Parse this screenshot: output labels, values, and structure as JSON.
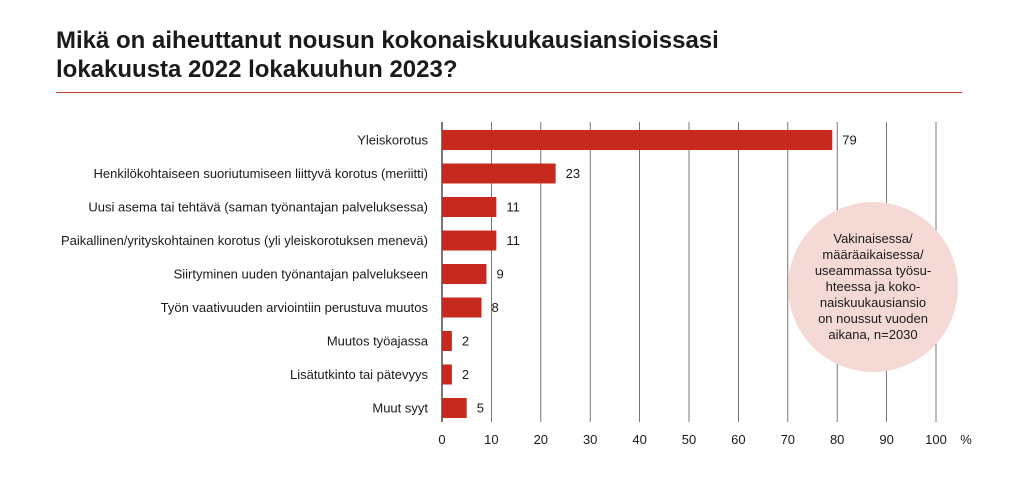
{
  "title_line1": "Mikä on aiheuttanut nousun kokonaiskuukausiansioissasi",
  "title_line2": "lokakuusta 2022 lokakuuhun 2023?",
  "annotation": "Vakinaisessa/\nmääräaikaisessa/\nuseammassa työsu-\nhteessa ja koko-\nnaiskuukausiansio\non noussut vuoden\naikana, n=2030",
  "colors": {
    "bar": "#c62a1f",
    "grid": "#555555",
    "rule": "#c0392b",
    "bubble": "#f4d9d4"
  },
  "chart_data": {
    "type": "bar",
    "orientation": "horizontal",
    "categories": [
      "Yleiskorotus",
      "Henkilökohtaiseen suoriutumiseen liittyvä korotus (meriitti)",
      "Uusi asema tai tehtävä (saman työnantajan palveluksessa)",
      "Paikallinen/yrityskohtainen korotus (yli yleiskorotuksen menevä)",
      "Siirtyminen uuden työnantajan palvelukseen",
      "Työn vaativuuden arviointiin perustuva muutos",
      "Muutos työajassa",
      "Lisätutkinto tai pätevyys",
      "Muut syyt"
    ],
    "values": [
      79,
      23,
      11,
      11,
      9,
      8,
      2,
      2,
      5
    ],
    "xlim": [
      0,
      100
    ],
    "xticks": [
      0,
      10,
      20,
      30,
      40,
      50,
      60,
      70,
      80,
      90,
      100
    ],
    "unit": "%",
    "grid": true
  }
}
